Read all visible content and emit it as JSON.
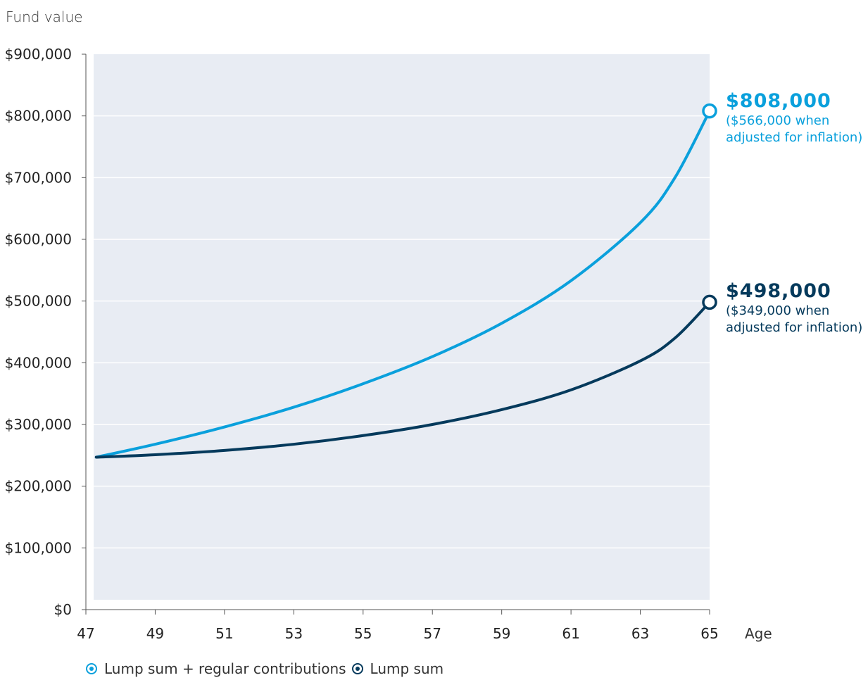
{
  "chart_data": {
    "type": "line",
    "ylabel": "Fund value",
    "xlabel": "Age",
    "xlim": [
      47,
      65
    ],
    "ylim": [
      0,
      900000
    ],
    "x_ticks": [
      "47",
      "49",
      "51",
      "53",
      "55",
      "57",
      "59",
      "61",
      "63",
      "65"
    ],
    "y_ticks": [
      "$0",
      "$100,000",
      "$200,000",
      "$300,000",
      "$400,000",
      "$500,000",
      "$600,000",
      "$700,000",
      "$800,000",
      "$900,000"
    ],
    "grid": true,
    "legend_position": "bottom-left",
    "series": [
      {
        "name": "Lump sum + regular contributions",
        "color": "#0aa0dc",
        "x": [
          47.3,
          49,
          51,
          53,
          55,
          57,
          59,
          61,
          63,
          64,
          65
        ],
        "y": [
          247000,
          268000,
          296000,
          328000,
          366000,
          410000,
          464000,
          533000,
          627000,
          700000,
          808000
        ],
        "end_label": "$808,000",
        "end_note_line1": "($566,000 when",
        "end_note_line2": "adjusted for inflation)"
      },
      {
        "name": "Lump sum",
        "color": "#053a5c",
        "x": [
          47.3,
          49,
          51,
          53,
          55,
          57,
          59,
          61,
          63,
          64,
          65
        ],
        "y": [
          247000,
          251000,
          258000,
          268000,
          282000,
          300000,
          324000,
          356000,
          403000,
          440000,
          498000
        ],
        "end_label": "$498,000",
        "end_note_line1": "($349,000 when",
        "end_note_line2": "adjusted for inflation)"
      }
    ]
  }
}
